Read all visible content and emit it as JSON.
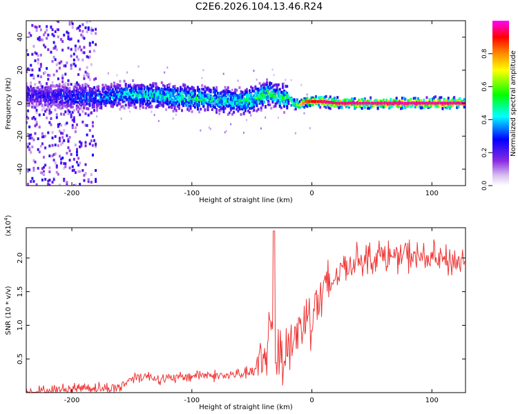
{
  "title": "C2E6.2026.104.13.46.R24",
  "chart_data": [
    {
      "type": "heatmap",
      "name": "spectrogram",
      "xlabel": "Height of straight line (km)",
      "ylabel": "Frequency (Hz)",
      "xlim": [
        -238,
        128
      ],
      "ylim": [
        -50,
        50
      ],
      "x_ticks": [
        -200,
        -100,
        0,
        100
      ],
      "x_tick_labels": [
        "-200",
        "-100",
        "0",
        "100"
      ],
      "y_ticks": [
        -40,
        -20,
        0,
        20,
        40
      ],
      "y_tick_labels": [
        "-40",
        "-20",
        "0",
        "20",
        "40"
      ],
      "colorbar": {
        "label": "Normalized spectral amplitude",
        "range": [
          0.0,
          1.0
        ],
        "ticks": [
          0.0,
          0.2,
          0.4,
          0.6,
          0.8
        ],
        "tick_labels": [
          "0.0",
          "0.2",
          "0.4",
          "0.6",
          "0.8"
        ],
        "colors": [
          "#ffffff",
          "#d9c2f0",
          "#8a2be2",
          "#0000ff",
          "#00ffff",
          "#00ff00",
          "#ffff00",
          "#ff8c00",
          "#ff0000",
          "#ff00ff"
        ]
      },
      "ridge": {
        "x": [
          -238,
          -220,
          -200,
          -180,
          -160,
          -140,
          -120,
          -100,
          -80,
          -60,
          -50,
          -40,
          -35,
          -30,
          -20,
          -15,
          -10,
          -5,
          0,
          10,
          20,
          40,
          60,
          80,
          100,
          128
        ],
        "frequency_hz": [
          5,
          4,
          4,
          3,
          5,
          5,
          4,
          3,
          2,
          1,
          2,
          5,
          6,
          4,
          3,
          0,
          -1,
          1,
          1,
          1,
          0,
          0,
          0,
          0,
          0,
          0
        ],
        "amplitude": [
          0.25,
          0.3,
          0.35,
          0.4,
          0.45,
          0.5,
          0.5,
          0.55,
          0.55,
          0.5,
          0.55,
          0.6,
          0.6,
          0.55,
          0.6,
          0.7,
          0.75,
          0.85,
          0.9,
          0.95,
          0.95,
          0.97,
          0.97,
          0.97,
          0.97,
          0.97
        ]
      }
    },
    {
      "type": "line",
      "name": "snr",
      "xlabel": "Height of straight line (km)",
      "ylabel": "SNR (10 * v/v)",
      "y_scale_label": "(x10",
      "y_scale_exp": "4",
      "y_scale_close": ")",
      "xlim": [
        -238,
        128
      ],
      "ylim": [
        0,
        2.45
      ],
      "x_ticks": [
        -200,
        -100,
        0,
        100
      ],
      "x_tick_labels": [
        "-200",
        "-100",
        "0",
        "100"
      ],
      "y_ticks": [
        0.5,
        1.0,
        1.5,
        2.0
      ],
      "y_tick_labels": [
        "0.5",
        "1.0",
        "1.5",
        "2.0"
      ],
      "color": "#ee3333",
      "x": [
        -238,
        -220,
        -210,
        -200,
        -190,
        -180,
        -170,
        -160,
        -155,
        -150,
        -140,
        -130,
        -120,
        -110,
        -100,
        -90,
        -80,
        -70,
        -60,
        -50,
        -45,
        -40,
        -35,
        -32,
        -30,
        -25,
        -20,
        -15,
        -10,
        -5,
        0,
        5,
        10,
        15,
        20,
        25,
        30,
        40,
        50,
        60,
        70,
        80,
        90,
        100,
        110,
        120,
        128
      ],
      "values": [
        0.01,
        0.02,
        0.04,
        0.06,
        0.08,
        0.07,
        0.06,
        0.08,
        0.15,
        0.22,
        0.25,
        0.22,
        0.2,
        0.22,
        0.25,
        0.27,
        0.25,
        0.25,
        0.28,
        0.3,
        0.35,
        0.5,
        0.95,
        1.0,
        0.6,
        0.55,
        0.7,
        0.8,
        0.95,
        1.1,
        1.25,
        1.35,
        1.45,
        1.55,
        1.75,
        1.85,
        1.9,
        2.0,
        2.0,
        2.05,
        2.0,
        2.05,
        2.0,
        2.0,
        1.95,
        1.95,
        1.95
      ]
    }
  ]
}
